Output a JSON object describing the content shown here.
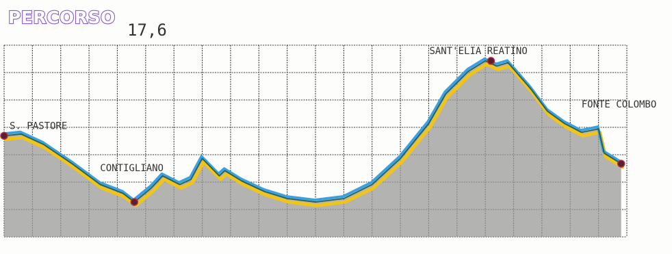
{
  "header": {
    "title": "PERCORSO",
    "distance": "17,6"
  },
  "colors": {
    "title": "#8a5bd6",
    "profile_blue": "#3aa0e0",
    "profile_yellow": "#f0c419",
    "profile_dark": "#2a5f4a",
    "fill": "#9a9a9a",
    "grid": "#3a3a3a",
    "marker": "#5a1f33"
  },
  "chart_data": {
    "type": "area",
    "title": "PERCORSO",
    "xlabel": "",
    "ylabel": "",
    "grid": true,
    "x_range": [
      0,
      11
    ],
    "y_range": [
      0,
      11
    ],
    "series": [
      {
        "values_x": [
          0,
          0.3,
          0.7,
          1.2,
          1.7,
          2.1,
          2.3,
          2.6,
          2.8,
          3.1,
          3.3,
          3.5,
          3.8,
          3.9,
          4.2,
          4.6,
          5.0,
          5.5,
          6.0,
          6.5,
          7.0,
          7.5,
          7.8,
          8.2,
          8.5,
          8.7,
          8.9,
          9.3,
          9.6,
          9.9,
          10.2,
          10.5,
          10.6,
          10.9
        ],
        "values_y": [
          5.8,
          5.9,
          5.3,
          4.2,
          3.0,
          2.5,
          2.0,
          2.8,
          3.5,
          3.0,
          3.3,
          4.5,
          3.5,
          3.8,
          3.2,
          2.6,
          2.2,
          2.0,
          2.2,
          3.0,
          4.5,
          6.5,
          8.2,
          9.5,
          10.1,
          9.8,
          10.0,
          8.5,
          7.2,
          6.5,
          6.0,
          6.2,
          4.8,
          4.2
        ]
      }
    ],
    "annotations": [
      {
        "label": "S. PASTORE",
        "x": 0.0,
        "y": 5.8
      },
      {
        "label": "CONTIGLIANO",
        "x": 2.3,
        "y": 2.0
      },
      {
        "label": "SANT'ELIA REATINO",
        "x": 8.6,
        "y": 10.1
      },
      {
        "label": "FONTE COLOMBO",
        "x": 10.9,
        "y": 4.2
      }
    ]
  }
}
